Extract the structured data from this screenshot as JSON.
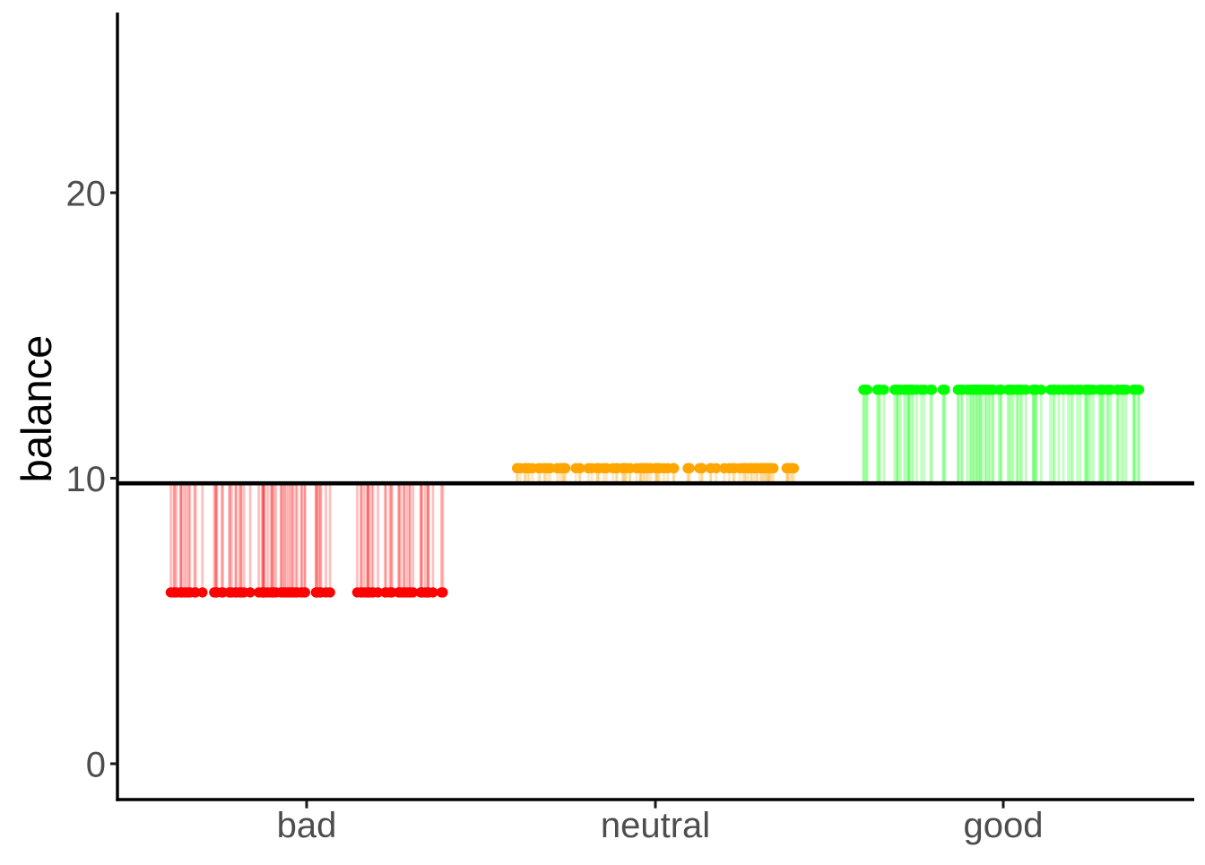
{
  "chart_data": {
    "type": "scatter",
    "title": "",
    "xlabel": "",
    "ylabel": "balance",
    "categories": [
      "bad",
      "neutral",
      "good"
    ],
    "series": [
      {
        "name": "bad",
        "color": "#FF0000",
        "value": 6.0,
        "n_points": 100
      },
      {
        "name": "neutral",
        "color": "#FFA500",
        "value": 10.35,
        "n_points": 100
      },
      {
        "name": "good",
        "color": "#00FF00",
        "value": 13.1,
        "n_points": 100
      }
    ],
    "grand_mean_line": 9.82,
    "yticks": [
      0,
      10,
      20
    ],
    "ylim": [
      -1.26,
      26.3
    ],
    "jitter_width": 0.4,
    "grid": false,
    "legend": "none",
    "segment_style": "residual lines from each point to the grand mean line",
    "axis_color": "#000000",
    "label_color": "#4d4d4d"
  }
}
